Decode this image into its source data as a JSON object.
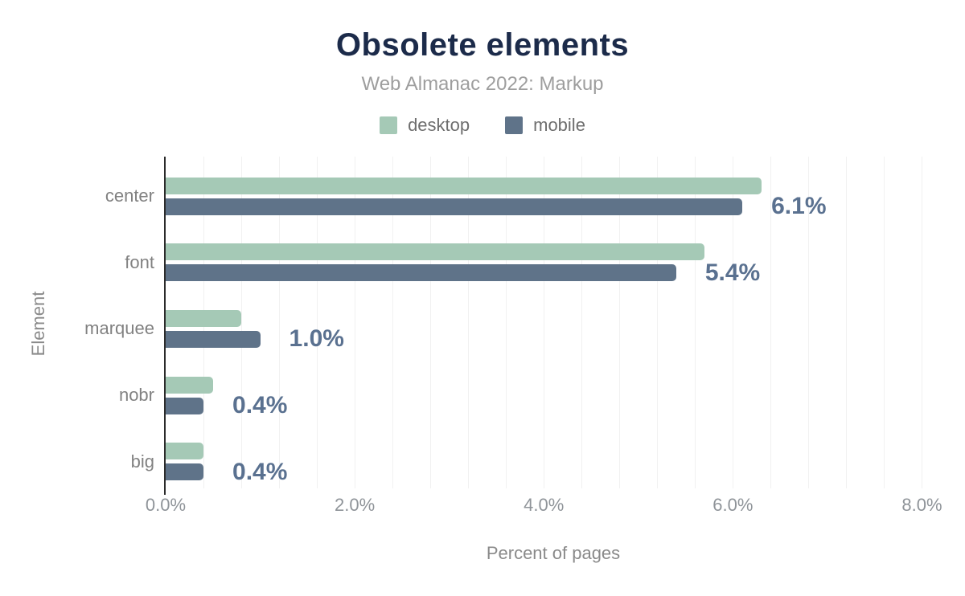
{
  "chart_data": {
    "type": "bar",
    "orientation": "horizontal",
    "title": "Obsolete elements",
    "subtitle": "Web Almanac 2022: Markup",
    "xlabel": "Percent of pages",
    "ylabel": "Element",
    "categories": [
      "center",
      "font",
      "marquee",
      "nobr",
      "big"
    ],
    "series": [
      {
        "name": "desktop",
        "color": "#a5c9b6",
        "values": [
          6.3,
          5.7,
          0.8,
          0.5,
          0.4
        ]
      },
      {
        "name": "mobile",
        "color": "#5f7389",
        "values": [
          6.1,
          5.4,
          1.0,
          0.4,
          0.4
        ]
      }
    ],
    "value_labels": {
      "series": "mobile",
      "texts": [
        "6.1%",
        "5.4%",
        "1.0%",
        "0.4%",
        "0.4%"
      ]
    },
    "x_ticks": [
      {
        "value": 0,
        "label": "0.0%"
      },
      {
        "value": 2,
        "label": "2.0%"
      },
      {
        "value": 4,
        "label": "4.0%"
      },
      {
        "value": 6,
        "label": "6.0%"
      },
      {
        "value": 8,
        "label": "8.0%"
      }
    ],
    "xlim": [
      0,
      8.2
    ],
    "gridline_step": 0.4,
    "grid": true,
    "legend_position": "top"
  },
  "colors": {
    "title": "#1c2b4a",
    "subtitle": "#9e9e9e",
    "legend_text": "#6e6e6e",
    "category_text": "#818181",
    "tick_text": "#8f9499",
    "value_label_text": "#5a7190",
    "axis_line": "#2b2b2b",
    "gridline": "#f1f1f1",
    "background": "#ffffff"
  }
}
